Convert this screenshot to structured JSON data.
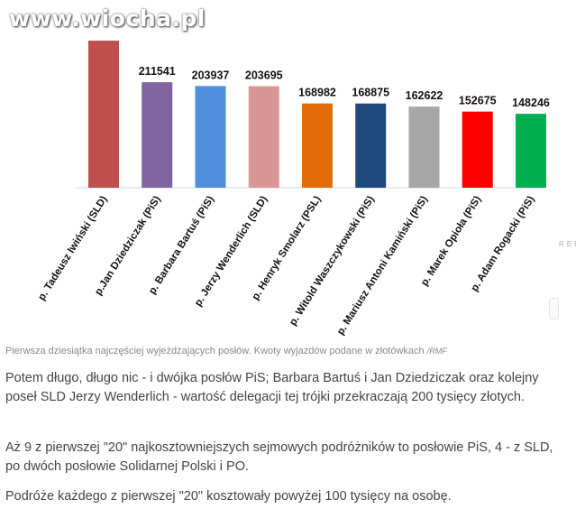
{
  "watermark": "www.wiocha.pl",
  "side_text": "REI",
  "chart_data": {
    "type": "bar",
    "title": "",
    "xlabel": "",
    "ylabel": "",
    "ylim": [
      0,
      300000
    ],
    "grid": false,
    "legend": "none",
    "categories": [
      "p. Tadeusz Iwiński (SLD)",
      "p.Jan Dziedziczak (PiS)",
      "p. Barbara Bartuś (PiS)",
      "p. Jerzy Wenderlich (SLD)",
      "p. Henryk Smolarz (PSL)",
      "p. Witold Waszczykowski (PiS)",
      "p. Mariusz Antoni Kamiński (PiS)",
      "p. Marek Opioła (PiS)",
      "p. Adam Rogacki (PiS)"
    ],
    "values": [
      295000,
      211541,
      203937,
      203695,
      168982,
      168875,
      162622,
      152675,
      148246
    ],
    "value_labels": [
      "",
      "211541",
      "203937",
      "203695",
      "168982",
      "168875",
      "162622",
      "152675",
      "148246"
    ],
    "colors": [
      "#c0504d",
      "#8064a2",
      "#4f8fdb",
      "#d99694",
      "#e36c09",
      "#1f497d",
      "#a6a6a6",
      "#ff0000",
      "#00b050"
    ]
  },
  "caption": {
    "text": "Pierwsza dziesiątka najczęściej wyjeżdżających posłów. Kwoty wyjazdów podane w złotówkach ",
    "source": "/RMF"
  },
  "paragraphs": [
    "Potem długo, długo nic - i dwójka posłów PiS; Barbara Bartuś i Jan Dziedziczak oraz kolejny poseł SLD Jerzy Wenderlich - wartość delegacji tej trójki przekraczają 200 tysięcy złotych.",
    "Aż 9 z pierwszej \"20\" najkosztowniejszych sejmowych podróżników to posłowie PiS, 4 - z SLD, po dwóch posłowie Solidarnej Polski i PO.",
    "Podróże każdego z pierwszej \"20\" kosztowały powyżej 100 tysięcy na osobę."
  ]
}
